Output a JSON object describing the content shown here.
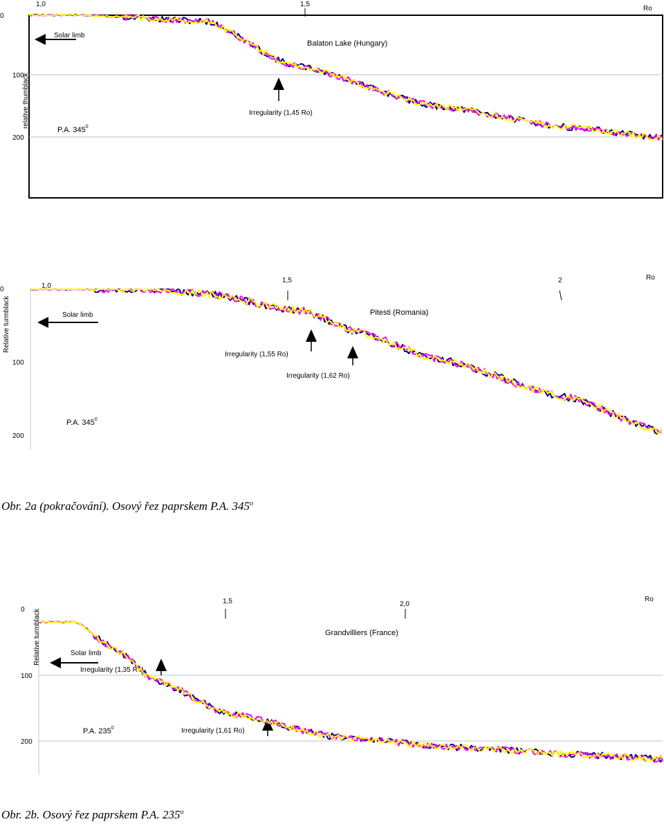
{
  "palette": {
    "navy": "#000080",
    "magenta": "#ff00ff",
    "yellow": "#ffff00",
    "grid": "#c0c0c0",
    "axis": "#000000"
  },
  "chart_data": [
    {
      "type": "line",
      "title": "Balaton Lake (Hungary)",
      "ylabel": "relative thumblack",
      "x_axis_label": "Ro",
      "x_ticks": [
        "1,0",
        "1,5"
      ],
      "y_ticks": [
        "0",
        "100",
        "200"
      ],
      "ylim": [
        0,
        300
      ],
      "ylim_inverted": true,
      "grid": true,
      "pa_label": "P.A. 345",
      "pa_sup": "0",
      "solar_limb": "Solar limb",
      "annotations": [
        "Irregularity (1,45 Ro)"
      ],
      "irregularity_x": [
        1.45
      ],
      "series_colors": [
        "#000080",
        "#ff00ff",
        "#ffff00"
      ],
      "profile": {
        "xs": [
          0.83,
          0.94,
          1.25,
          1.45,
          1.8,
          2.1,
          2.32
        ],
        "ys": [
          2,
          2,
          12,
          82,
          150,
          183,
          200
        ]
      },
      "xlim": [
        0.83,
        2.33
      ]
    },
    {
      "type": "line",
      "title": "Pitesti (Romania)",
      "ylabel": "Relative turmblack",
      "x_axis_label": "Ro",
      "x_ticks": [
        "1,0",
        "1,5",
        "2"
      ],
      "y_ticks": [
        "0",
        "100",
        "200"
      ],
      "ylim": [
        0,
        210
      ],
      "ylim_inverted": true,
      "grid": false,
      "pa_label": "P.A. 345",
      "pa_sup": "0",
      "solar_limb": "Solar limb",
      "annotations": [
        "Irregularity (1,55 Ro)",
        "Irregularity (1,62 Ro)"
      ],
      "irregularity_x": [
        1.55,
        1.62
      ],
      "series_colors": [
        "#000080",
        "#ff00ff",
        "#ffff00"
      ],
      "profile": {
        "xs": [
          0.98,
          1.22,
          1.3,
          1.5,
          1.6,
          1.75,
          2.0,
          2.18
        ],
        "ys": [
          0,
          0,
          5,
          30,
          58,
          95,
          148,
          195
        ]
      },
      "xlim": [
        0.98,
        2.18
      ]
    },
    {
      "type": "line",
      "title": "Grandvilliers (France)",
      "ylabel": "Relative turmblack",
      "x_axis_label": "Ro",
      "x_ticks": [
        "1,5",
        "2,0"
      ],
      "y_ticks": [
        "0",
        "100",
        "200"
      ],
      "ylim": [
        0,
        250
      ],
      "ylim_inverted": true,
      "grid": true,
      "pa_label": "P.A. 235",
      "pa_sup": "0",
      "solar_limb": "Solar limb",
      "annotations": [
        "Irregularity (1,35 Ro)",
        "Irregularity (1,61 Ro)"
      ],
      "irregularity_x": [
        1.35,
        1.61
      ],
      "series_colors": [
        "#000080",
        "#ff00ff",
        "#ffff00"
      ],
      "profile": {
        "xs": [
          1.19,
          1.27,
          1.35,
          1.45,
          1.61,
          1.85,
          2.1,
          2.4,
          2.56
        ],
        "ys": [
          20,
          20,
          58,
          110,
          160,
          195,
          210,
          222,
          228
        ]
      },
      "xlim": [
        1.19,
        2.56
      ]
    }
  ],
  "captions": {
    "fig2a": "Obr. 2a (pokračování). Osový řez paprskem P.A. 345",
    "fig2a_sup": "o",
    "fig2b": "Obr. 2b. Osový řez paprskem P.A. 235",
    "fig2b_sup": "o"
  }
}
